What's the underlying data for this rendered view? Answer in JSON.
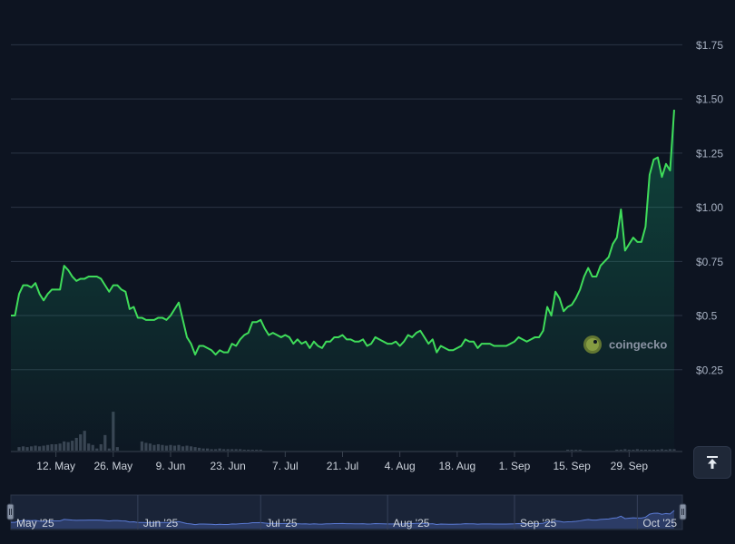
{
  "brand": {
    "watermark": "coingecko",
    "logo_icon": "gecko-logo-icon",
    "scroll_top_icon": "arrow-up-bar-icon"
  },
  "colors": {
    "background": "#0d1421",
    "line": "#3fdc5a",
    "area": "#16c784",
    "volume": "#3a4252",
    "navigator_fill": "#2c3c66",
    "navigator_line": "#5b7bd5"
  },
  "chart_data": {
    "type": "area",
    "title": "",
    "xlabel": "",
    "ylabel": "",
    "ylim": [
      0,
      1.75
    ],
    "y_ticks": [
      {
        "value": 0.25,
        "label": "$0.25"
      },
      {
        "value": 0.5,
        "label": "$0.5"
      },
      {
        "value": 0.75,
        "label": "$0.75"
      },
      {
        "value": 1.0,
        "label": "$1.00"
      },
      {
        "value": 1.25,
        "label": "$1.25"
      },
      {
        "value": 1.5,
        "label": "$1.50"
      },
      {
        "value": 1.75,
        "label": "$1.75"
      }
    ],
    "x_range": [
      "2025-05-01",
      "2025-10-12"
    ],
    "x_ticks": [
      {
        "date": "2025-05-12",
        "label": "12. May"
      },
      {
        "date": "2025-05-26",
        "label": "26. May"
      },
      {
        "date": "2025-06-09",
        "label": "9. Jun"
      },
      {
        "date": "2025-06-23",
        "label": "23. Jun"
      },
      {
        "date": "2025-07-07",
        "label": "7. Jul"
      },
      {
        "date": "2025-07-21",
        "label": "21. Jul"
      },
      {
        "date": "2025-08-04",
        "label": "4. Aug"
      },
      {
        "date": "2025-08-18",
        "label": "18. Aug"
      },
      {
        "date": "2025-09-01",
        "label": "1. Sep"
      },
      {
        "date": "2025-09-15",
        "label": "15. Sep"
      },
      {
        "date": "2025-09-29",
        "label": "29. Sep"
      }
    ],
    "navigator_ticks": [
      {
        "date": "2025-05-01",
        "label": "May '25"
      },
      {
        "date": "2025-06-01",
        "label": "Jun '25"
      },
      {
        "date": "2025-07-01",
        "label": "Jul '25"
      },
      {
        "date": "2025-08-01",
        "label": "Aug '25"
      },
      {
        "date": "2025-09-01",
        "label": "Sep '25"
      },
      {
        "date": "2025-10-01",
        "label": "Oct '25"
      }
    ],
    "series": [
      {
        "type": "line",
        "points": [
          [
            "2025-05-01",
            0.5
          ],
          [
            "2025-05-02",
            0.5
          ],
          [
            "2025-05-03",
            0.6
          ],
          [
            "2025-05-04",
            0.64
          ],
          [
            "2025-05-05",
            0.64
          ],
          [
            "2025-05-06",
            0.63
          ],
          [
            "2025-05-07",
            0.65
          ],
          [
            "2025-05-08",
            0.6
          ],
          [
            "2025-05-09",
            0.57
          ],
          [
            "2025-05-10",
            0.6
          ],
          [
            "2025-05-11",
            0.62
          ],
          [
            "2025-05-12",
            0.62
          ],
          [
            "2025-05-13",
            0.62
          ],
          [
            "2025-05-14",
            0.73
          ],
          [
            "2025-05-15",
            0.71
          ],
          [
            "2025-05-16",
            0.68
          ],
          [
            "2025-05-17",
            0.66
          ],
          [
            "2025-05-18",
            0.67
          ],
          [
            "2025-05-19",
            0.67
          ],
          [
            "2025-05-20",
            0.68
          ],
          [
            "2025-05-21",
            0.68
          ],
          [
            "2025-05-22",
            0.68
          ],
          [
            "2025-05-23",
            0.67
          ],
          [
            "2025-05-24",
            0.64
          ],
          [
            "2025-05-25",
            0.61
          ],
          [
            "2025-05-26",
            0.64
          ],
          [
            "2025-05-27",
            0.64
          ],
          [
            "2025-05-28",
            0.62
          ],
          [
            "2025-05-29",
            0.61
          ],
          [
            "2025-05-30",
            0.53
          ],
          [
            "2025-05-31",
            0.54
          ],
          [
            "2025-06-01",
            0.49
          ],
          [
            "2025-06-02",
            0.49
          ],
          [
            "2025-06-03",
            0.48
          ],
          [
            "2025-06-04",
            0.48
          ],
          [
            "2025-06-05",
            0.48
          ],
          [
            "2025-06-06",
            0.49
          ],
          [
            "2025-06-07",
            0.49
          ],
          [
            "2025-06-08",
            0.48
          ],
          [
            "2025-06-09",
            0.5
          ],
          [
            "2025-06-10",
            0.53
          ],
          [
            "2025-06-11",
            0.56
          ],
          [
            "2025-06-12",
            0.48
          ],
          [
            "2025-06-13",
            0.4
          ],
          [
            "2025-06-14",
            0.37
          ],
          [
            "2025-06-15",
            0.32
          ],
          [
            "2025-06-16",
            0.36
          ],
          [
            "2025-06-17",
            0.36
          ],
          [
            "2025-06-18",
            0.35
          ],
          [
            "2025-06-19",
            0.34
          ],
          [
            "2025-06-20",
            0.32
          ],
          [
            "2025-06-21",
            0.34
          ],
          [
            "2025-06-22",
            0.33
          ],
          [
            "2025-06-23",
            0.33
          ],
          [
            "2025-06-24",
            0.37
          ],
          [
            "2025-06-25",
            0.36
          ],
          [
            "2025-06-26",
            0.39
          ],
          [
            "2025-06-27",
            0.41
          ],
          [
            "2025-06-28",
            0.42
          ],
          [
            "2025-06-29",
            0.47
          ],
          [
            "2025-06-30",
            0.47
          ],
          [
            "2025-07-01",
            0.48
          ],
          [
            "2025-07-02",
            0.44
          ],
          [
            "2025-07-03",
            0.41
          ],
          [
            "2025-07-04",
            0.42
          ],
          [
            "2025-07-05",
            0.41
          ],
          [
            "2025-07-06",
            0.4
          ],
          [
            "2025-07-07",
            0.41
          ],
          [
            "2025-07-08",
            0.4
          ],
          [
            "2025-07-09",
            0.37
          ],
          [
            "2025-07-10",
            0.39
          ],
          [
            "2025-07-11",
            0.37
          ],
          [
            "2025-07-12",
            0.38
          ],
          [
            "2025-07-13",
            0.35
          ],
          [
            "2025-07-14",
            0.38
          ],
          [
            "2025-07-15",
            0.36
          ],
          [
            "2025-07-16",
            0.35
          ],
          [
            "2025-07-17",
            0.38
          ],
          [
            "2025-07-18",
            0.38
          ],
          [
            "2025-07-19",
            0.4
          ],
          [
            "2025-07-20",
            0.4
          ],
          [
            "2025-07-21",
            0.41
          ],
          [
            "2025-07-22",
            0.39
          ],
          [
            "2025-07-23",
            0.39
          ],
          [
            "2025-07-24",
            0.38
          ],
          [
            "2025-07-25",
            0.38
          ],
          [
            "2025-07-26",
            0.39
          ],
          [
            "2025-07-27",
            0.36
          ],
          [
            "2025-07-28",
            0.37
          ],
          [
            "2025-07-29",
            0.4
          ],
          [
            "2025-07-30",
            0.39
          ],
          [
            "2025-07-31",
            0.38
          ],
          [
            "2025-08-01",
            0.37
          ],
          [
            "2025-08-02",
            0.37
          ],
          [
            "2025-08-03",
            0.38
          ],
          [
            "2025-08-04",
            0.36
          ],
          [
            "2025-08-05",
            0.38
          ],
          [
            "2025-08-06",
            0.41
          ],
          [
            "2025-08-07",
            0.4
          ],
          [
            "2025-08-08",
            0.42
          ],
          [
            "2025-08-09",
            0.43
          ],
          [
            "2025-08-10",
            0.4
          ],
          [
            "2025-08-11",
            0.37
          ],
          [
            "2025-08-12",
            0.39
          ],
          [
            "2025-08-13",
            0.33
          ],
          [
            "2025-08-14",
            0.36
          ],
          [
            "2025-08-15",
            0.35
          ],
          [
            "2025-08-16",
            0.34
          ],
          [
            "2025-08-17",
            0.34
          ],
          [
            "2025-08-18",
            0.35
          ],
          [
            "2025-08-19",
            0.36
          ],
          [
            "2025-08-20",
            0.39
          ],
          [
            "2025-08-21",
            0.38
          ],
          [
            "2025-08-22",
            0.38
          ],
          [
            "2025-08-23",
            0.35
          ],
          [
            "2025-08-24",
            0.37
          ],
          [
            "2025-08-25",
            0.37
          ],
          [
            "2025-08-26",
            0.37
          ],
          [
            "2025-08-27",
            0.36
          ],
          [
            "2025-08-28",
            0.36
          ],
          [
            "2025-08-29",
            0.36
          ],
          [
            "2025-08-30",
            0.36
          ],
          [
            "2025-08-31",
            0.37
          ],
          [
            "2025-09-01",
            0.38
          ],
          [
            "2025-09-02",
            0.4
          ],
          [
            "2025-09-03",
            0.39
          ],
          [
            "2025-09-04",
            0.38
          ],
          [
            "2025-09-05",
            0.39
          ],
          [
            "2025-09-06",
            0.4
          ],
          [
            "2025-09-07",
            0.4
          ],
          [
            "2025-09-08",
            0.43
          ],
          [
            "2025-09-09",
            0.54
          ],
          [
            "2025-09-10",
            0.5
          ],
          [
            "2025-09-11",
            0.61
          ],
          [
            "2025-09-12",
            0.58
          ],
          [
            "2025-09-13",
            0.52
          ],
          [
            "2025-09-14",
            0.54
          ],
          [
            "2025-09-15",
            0.55
          ],
          [
            "2025-09-16",
            0.58
          ],
          [
            "2025-09-17",
            0.62
          ],
          [
            "2025-09-18",
            0.68
          ],
          [
            "2025-09-19",
            0.72
          ],
          [
            "2025-09-20",
            0.68
          ],
          [
            "2025-09-21",
            0.68
          ],
          [
            "2025-09-22",
            0.73
          ],
          [
            "2025-09-23",
            0.75
          ],
          [
            "2025-09-24",
            0.77
          ],
          [
            "2025-09-25",
            0.83
          ],
          [
            "2025-09-26",
            0.86
          ],
          [
            "2025-09-27",
            0.99
          ],
          [
            "2025-09-28",
            0.8
          ],
          [
            "2025-09-29",
            0.83
          ],
          [
            "2025-09-30",
            0.86
          ],
          [
            "2025-10-01",
            0.84
          ],
          [
            "2025-10-02",
            0.84
          ],
          [
            "2025-10-03",
            0.91
          ],
          [
            "2025-10-04",
            1.15
          ],
          [
            "2025-10-05",
            1.22
          ],
          [
            "2025-10-06",
            1.23
          ],
          [
            "2025-10-07",
            1.14
          ],
          [
            "2025-10-08",
            1.2
          ],
          [
            "2025-10-09",
            1.17
          ],
          [
            "2025-10-10",
            1.45
          ]
        ]
      }
    ],
    "volume": [
      [
        "2025-05-03",
        0.05
      ],
      [
        "2025-05-04",
        0.06
      ],
      [
        "2025-05-05",
        0.05
      ],
      [
        "2025-05-06",
        0.06
      ],
      [
        "2025-05-07",
        0.07
      ],
      [
        "2025-05-08",
        0.06
      ],
      [
        "2025-05-09",
        0.07
      ],
      [
        "2025-05-10",
        0.08
      ],
      [
        "2025-05-11",
        0.09
      ],
      [
        "2025-05-12",
        0.09
      ],
      [
        "2025-05-13",
        0.1
      ],
      [
        "2025-05-14",
        0.13
      ],
      [
        "2025-05-15",
        0.12
      ],
      [
        "2025-05-16",
        0.14
      ],
      [
        "2025-05-17",
        0.18
      ],
      [
        "2025-05-18",
        0.23
      ],
      [
        "2025-05-19",
        0.28
      ],
      [
        "2025-05-20",
        0.1
      ],
      [
        "2025-05-21",
        0.08
      ],
      [
        "2025-05-22",
        0.03
      ],
      [
        "2025-05-23",
        0.09
      ],
      [
        "2025-05-24",
        0.22
      ],
      [
        "2025-05-25",
        0.03
      ],
      [
        "2025-05-26",
        0.55
      ],
      [
        "2025-05-27",
        0.05
      ],
      [
        "2025-06-02",
        0.13
      ],
      [
        "2025-06-03",
        0.11
      ],
      [
        "2025-06-04",
        0.1
      ],
      [
        "2025-06-05",
        0.08
      ],
      [
        "2025-06-06",
        0.09
      ],
      [
        "2025-06-07",
        0.08
      ],
      [
        "2025-06-08",
        0.07
      ],
      [
        "2025-06-09",
        0.08
      ],
      [
        "2025-06-10",
        0.07
      ],
      [
        "2025-06-11",
        0.08
      ],
      [
        "2025-06-12",
        0.06
      ],
      [
        "2025-06-13",
        0.07
      ],
      [
        "2025-06-14",
        0.06
      ],
      [
        "2025-06-15",
        0.05
      ],
      [
        "2025-06-16",
        0.04
      ],
      [
        "2025-06-17",
        0.03
      ],
      [
        "2025-06-18",
        0.03
      ],
      [
        "2025-06-19",
        0.02
      ],
      [
        "2025-06-20",
        0.02
      ],
      [
        "2025-06-21",
        0.03
      ],
      [
        "2025-06-22",
        0.02
      ],
      [
        "2025-06-23",
        0.02
      ],
      [
        "2025-06-24",
        0.02
      ],
      [
        "2025-06-25",
        0.02
      ],
      [
        "2025-06-26",
        0.02
      ],
      [
        "2025-06-27",
        0.01
      ],
      [
        "2025-06-28",
        0.01
      ],
      [
        "2025-06-29",
        0.01
      ],
      [
        "2025-06-30",
        0.01
      ],
      [
        "2025-07-01",
        0.01
      ],
      [
        "2025-09-14",
        0.01
      ],
      [
        "2025-09-15",
        0.01
      ],
      [
        "2025-09-16",
        0.01
      ],
      [
        "2025-09-17",
        0.01
      ],
      [
        "2025-09-26",
        0.01
      ],
      [
        "2025-09-27",
        0.01
      ],
      [
        "2025-09-28",
        0.02
      ],
      [
        "2025-09-29",
        0.01
      ],
      [
        "2025-09-30",
        0.01
      ],
      [
        "2025-10-01",
        0.02
      ],
      [
        "2025-10-02",
        0.01
      ],
      [
        "2025-10-03",
        0.01
      ],
      [
        "2025-10-04",
        0.01
      ],
      [
        "2025-10-05",
        0.01
      ],
      [
        "2025-10-06",
        0.01
      ],
      [
        "2025-10-07",
        0.02
      ],
      [
        "2025-10-08",
        0.01
      ],
      [
        "2025-10-09",
        0.02
      ],
      [
        "2025-10-10",
        0.02
      ]
    ],
    "grid": true,
    "legend": "none"
  }
}
